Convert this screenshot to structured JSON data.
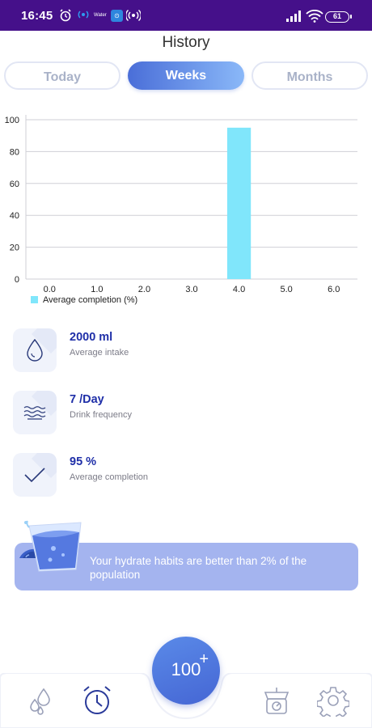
{
  "status_bar": {
    "time": "16:45",
    "app_text": "Water",
    "battery": "61",
    "background": "#45108a"
  },
  "header": {
    "title": "History"
  },
  "tabs": [
    {
      "label": "Today",
      "active": false
    },
    {
      "label": "Weeks",
      "active": true
    },
    {
      "label": "Months",
      "active": false
    }
  ],
  "chart_data": {
    "type": "bar",
    "x": [
      4.0
    ],
    "values": [
      95
    ],
    "x_ticks": [
      "0.0",
      "1.0",
      "2.0",
      "3.0",
      "4.0",
      "5.0",
      "6.0"
    ],
    "y_ticks": [
      "0",
      "20",
      "40",
      "60",
      "80",
      "100"
    ],
    "xlim": [
      -0.5,
      6.5
    ],
    "ylim": [
      0,
      100
    ],
    "grid": "horizontal",
    "series": [
      {
        "name": "Average completion (%)",
        "values": [
          95
        ],
        "color": "#80e6fb"
      }
    ],
    "legend": "bottom-left"
  },
  "stats": [
    {
      "value": "2000 ml",
      "label": "Average intake",
      "icon": "water-drop-icon"
    },
    {
      "value": "7 /Day",
      "label": "Drink frequency",
      "icon": "waves-icon"
    },
    {
      "value": "95 %",
      "label": "Average completion",
      "icon": "checkmark-icon"
    }
  ],
  "banner": {
    "text": "Your hydrate habits are better than 2% of the population",
    "icon": "water-glass-illustration"
  },
  "bottom_nav": {
    "fab_label": "100",
    "fab_plus": "+",
    "items": [
      "water-drops-icon",
      "alarm-clock-icon",
      "weight-scale-icon",
      "gear-icon"
    ]
  },
  "colors": {
    "accent": "#4a6ed8",
    "bar": "#80e6fb",
    "stat_value": "#1f2fa8",
    "banner": "#a4b4ef"
  }
}
